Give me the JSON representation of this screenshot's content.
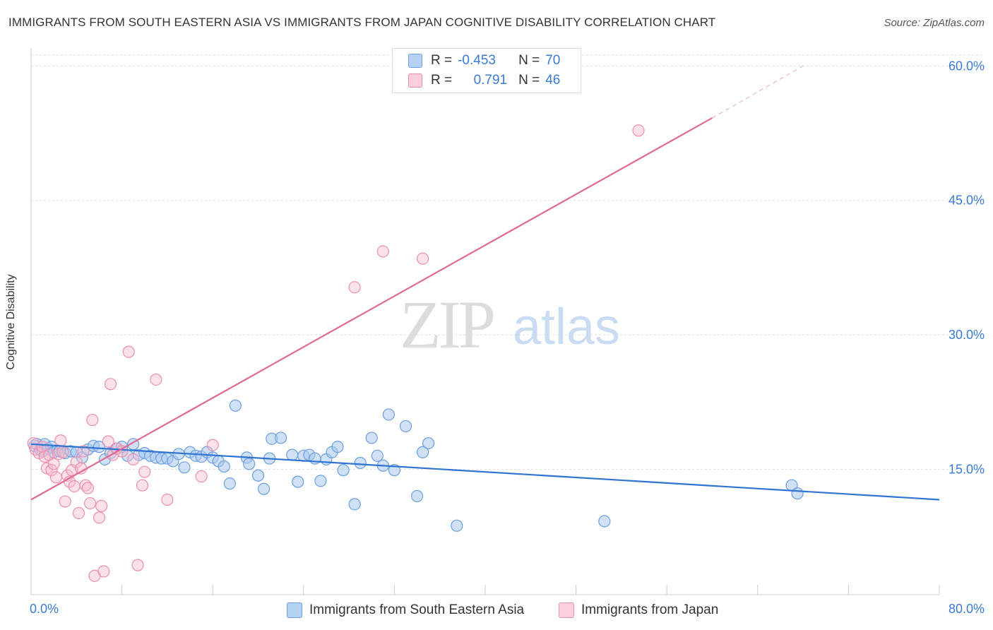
{
  "title": "IMMIGRANTS FROM SOUTH EASTERN ASIA VS IMMIGRANTS FROM JAPAN COGNITIVE DISABILITY CORRELATION CHART",
  "source": "Source: ZipAtlas.com",
  "watermark": {
    "zip": "ZIP",
    "atlas": "atlas"
  },
  "legend": {
    "series1": {
      "r_label": "R =",
      "r_value": "-0.453",
      "n_label": "N =",
      "n_value": "70"
    },
    "series2": {
      "r_label": "R =",
      "r_value": "0.791",
      "n_label": "N =",
      "n_value": "46"
    }
  },
  "bottom_legend": {
    "series1": "Immigrants from South Eastern Asia",
    "series2": "Immigrants from Japan"
  },
  "colors": {
    "blue_fill": "#a9c8ef",
    "blue_stroke": "#6a9fe0",
    "blue_line": "#2f74d0",
    "pink_fill": "#f6bcd0",
    "pink_stroke": "#ec8fae",
    "pink_line": "#e06a92",
    "axis_text": "#3a7bd5"
  },
  "chart_data": {
    "type": "scatter",
    "title": "IMMIGRANTS FROM SOUTH EASTERN ASIA VS IMMIGRANTS FROM JAPAN COGNITIVE DISABILITY CORRELATION CHART",
    "xlabel": "",
    "ylabel": "Cognitive Disability",
    "xlim": [
      0,
      80
    ],
    "ylim": [
      1,
      62
    ],
    "x_tick_labels": [
      "0.0%",
      "80.0%"
    ],
    "y_ticks": [
      15,
      30,
      45,
      60
    ],
    "y_tick_labels": [
      "15.0%",
      "30.0%",
      "45.0%",
      "60.0%"
    ],
    "grid": true,
    "series": [
      {
        "name": "Immigrants from South Eastern Asia",
        "color": "#6a9fe0",
        "points": [
          [
            0.3,
            17.6
          ],
          [
            0.5,
            17.8
          ],
          [
            0.8,
            17.2
          ],
          [
            1.0,
            17.0
          ],
          [
            1.2,
            17.8
          ],
          [
            1.5,
            17.3
          ],
          [
            1.8,
            17.5
          ],
          [
            2.0,
            16.9
          ],
          [
            2.3,
            17.1
          ],
          [
            2.5,
            17.0
          ],
          [
            3.0,
            16.8
          ],
          [
            3.5,
            17.0
          ],
          [
            4.0,
            16.9
          ],
          [
            4.5,
            16.3
          ],
          [
            5.0,
            17.2
          ],
          [
            5.5,
            17.6
          ],
          [
            6.0,
            17.5
          ],
          [
            6.5,
            16.1
          ],
          [
            7.0,
            16.8
          ],
          [
            7.5,
            17.3
          ],
          [
            8.0,
            17.5
          ],
          [
            8.5,
            16.5
          ],
          [
            9.0,
            17.8
          ],
          [
            9.5,
            16.6
          ],
          [
            10.0,
            16.8
          ],
          [
            10.5,
            16.5
          ],
          [
            11.0,
            16.3
          ],
          [
            11.5,
            16.2
          ],
          [
            12.0,
            16.2
          ],
          [
            12.5,
            15.9
          ],
          [
            13.0,
            16.7
          ],
          [
            13.5,
            15.2
          ],
          [
            14.0,
            16.9
          ],
          [
            14.5,
            16.5
          ],
          [
            15.0,
            16.4
          ],
          [
            15.5,
            16.9
          ],
          [
            16.0,
            16.3
          ],
          [
            16.5,
            15.9
          ],
          [
            17.0,
            15.3
          ],
          [
            17.5,
            13.4
          ],
          [
            18.0,
            22.1
          ],
          [
            19.0,
            16.3
          ],
          [
            19.2,
            15.6
          ],
          [
            20.0,
            14.3
          ],
          [
            20.5,
            12.8
          ],
          [
            21.0,
            16.2
          ],
          [
            21.2,
            18.4
          ],
          [
            22.0,
            18.5
          ],
          [
            23.0,
            16.6
          ],
          [
            23.5,
            13.6
          ],
          [
            24.0,
            16.5
          ],
          [
            24.5,
            16.6
          ],
          [
            25.0,
            16.2
          ],
          [
            25.5,
            13.7
          ],
          [
            26.0,
            16.1
          ],
          [
            26.5,
            16.9
          ],
          [
            27.0,
            17.5
          ],
          [
            27.5,
            14.9
          ],
          [
            28.5,
            11.1
          ],
          [
            29.0,
            15.7
          ],
          [
            30.0,
            18.5
          ],
          [
            30.5,
            16.5
          ],
          [
            31.0,
            15.4
          ],
          [
            31.5,
            21.1
          ],
          [
            32.0,
            14.9
          ],
          [
            33.0,
            19.8
          ],
          [
            34.0,
            12.0
          ],
          [
            34.5,
            16.9
          ],
          [
            35.0,
            17.9
          ],
          [
            37.5,
            8.7
          ],
          [
            50.5,
            9.2
          ],
          [
            67.0,
            13.2
          ],
          [
            67.5,
            12.3
          ]
        ],
        "trend": {
          "x0": 0,
          "y0": 17.8,
          "x1": 80,
          "y1": 11.6
        }
      },
      {
        "name": "Immigrants from Japan",
        "color": "#ec8fae",
        "points": [
          [
            0.2,
            17.9
          ],
          [
            0.4,
            17.2
          ],
          [
            0.7,
            16.8
          ],
          [
            1.0,
            17.5
          ],
          [
            1.2,
            16.4
          ],
          [
            1.4,
            15.1
          ],
          [
            1.6,
            16.6
          ],
          [
            1.8,
            14.9
          ],
          [
            2.0,
            15.6
          ],
          [
            2.2,
            14.1
          ],
          [
            2.4,
            16.7
          ],
          [
            2.6,
            18.2
          ],
          [
            2.8,
            16.9
          ],
          [
            3.0,
            11.4
          ],
          [
            3.2,
            14.3
          ],
          [
            3.4,
            13.6
          ],
          [
            3.6,
            14.9
          ],
          [
            3.8,
            13.1
          ],
          [
            4.0,
            15.8
          ],
          [
            4.2,
            10.1
          ],
          [
            4.4,
            15.1
          ],
          [
            4.6,
            17.0
          ],
          [
            4.8,
            13.2
          ],
          [
            5.0,
            12.9
          ],
          [
            5.2,
            11.2
          ],
          [
            5.4,
            20.5
          ],
          [
            5.6,
            3.1
          ],
          [
            6.0,
            9.6
          ],
          [
            6.2,
            10.9
          ],
          [
            6.4,
            3.6
          ],
          [
            6.8,
            18.1
          ],
          [
            7.0,
            24.5
          ],
          [
            7.2,
            16.6
          ],
          [
            7.6,
            17.3
          ],
          [
            8.0,
            17.0
          ],
          [
            8.6,
            28.1
          ],
          [
            9.0,
            16.1
          ],
          [
            9.4,
            4.3
          ],
          [
            9.8,
            13.2
          ],
          [
            10.0,
            14.7
          ],
          [
            11.0,
            25.0
          ],
          [
            12.0,
            11.6
          ],
          [
            15.0,
            14.2
          ],
          [
            16.0,
            17.7
          ],
          [
            28.5,
            35.3
          ],
          [
            31.0,
            39.3
          ],
          [
            34.5,
            38.5
          ],
          [
            53.5,
            52.8
          ]
        ],
        "trend": {
          "x0": 0,
          "y0": 11.6,
          "x1": 60,
          "y1": 54.2,
          "dashed_to": {
            "x": 68,
            "y": 60.0
          }
        }
      }
    ]
  }
}
